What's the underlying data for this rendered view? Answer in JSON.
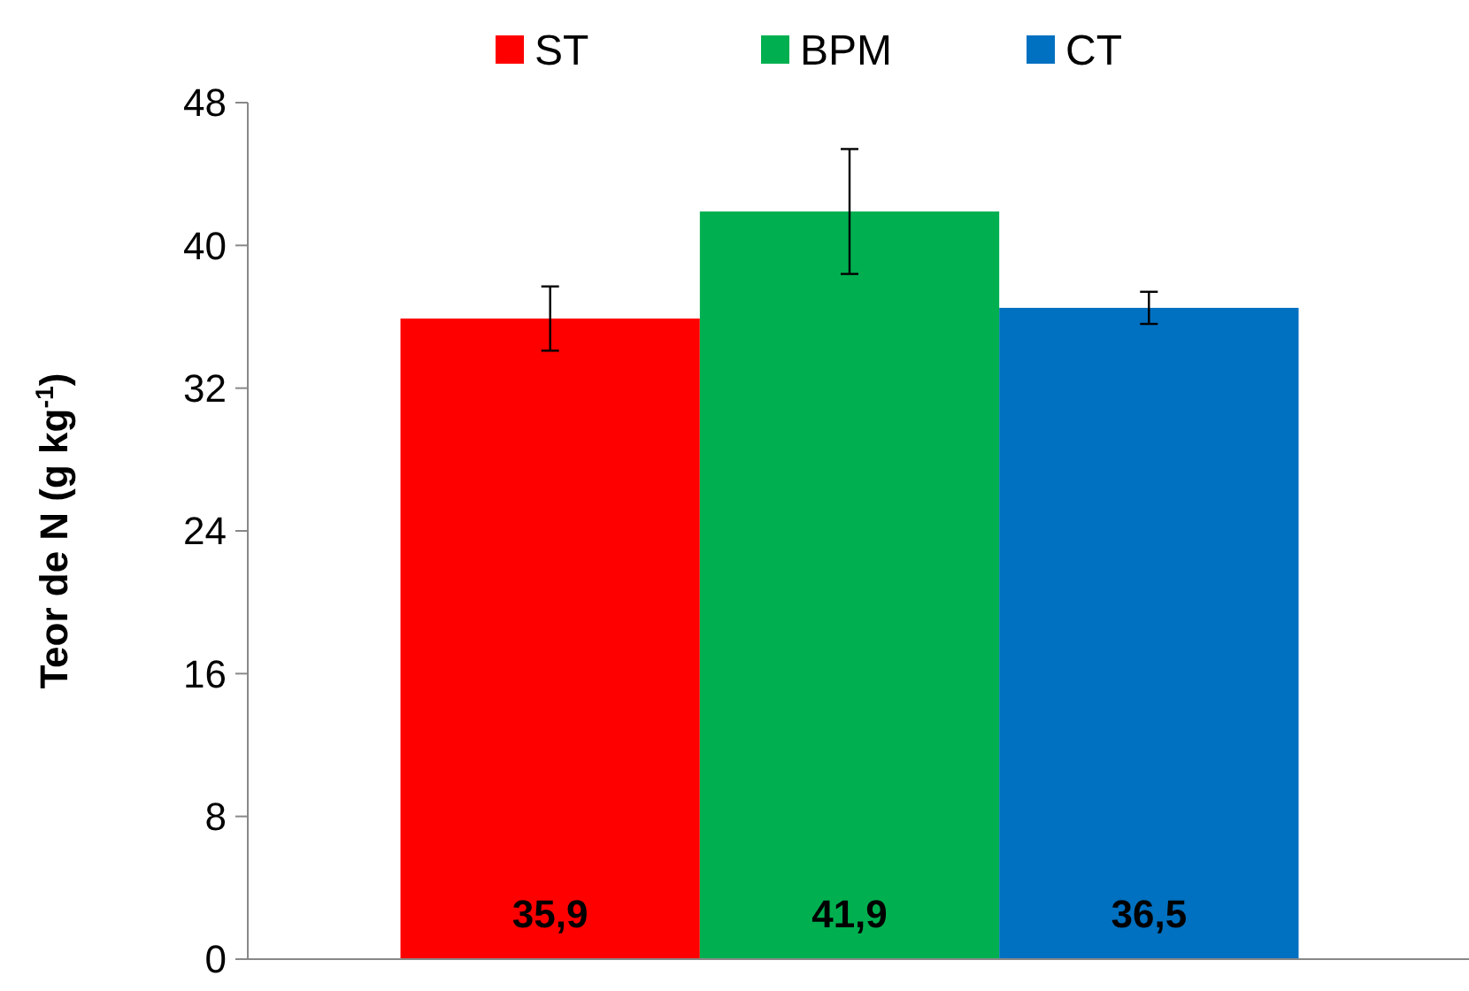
{
  "chart_data": {
    "type": "bar",
    "ylabel": "Teor de N (g kg$^{-1}$)",
    "categories": [
      null
    ],
    "ylim": [
      0,
      48
    ],
    "yticks": [
      0,
      8,
      16,
      24,
      32,
      40,
      48
    ],
    "grid": false,
    "legend": "top",
    "series": [
      {
        "name": "ST",
        "color": "#ff0000",
        "values": [
          35.9
        ],
        "errors": [
          1.8
        ],
        "value_labels": [
          "35,9"
        ]
      },
      {
        "name": "BPM",
        "color": "#00b050",
        "values": [
          41.9
        ],
        "errors": [
          3.5
        ],
        "value_labels": [
          "41,9"
        ]
      },
      {
        "name": "CT",
        "color": "#0070c0",
        "values": [
          36.5
        ],
        "errors": [
          0.9
        ],
        "value_labels": [
          "36,5"
        ]
      }
    ]
  }
}
